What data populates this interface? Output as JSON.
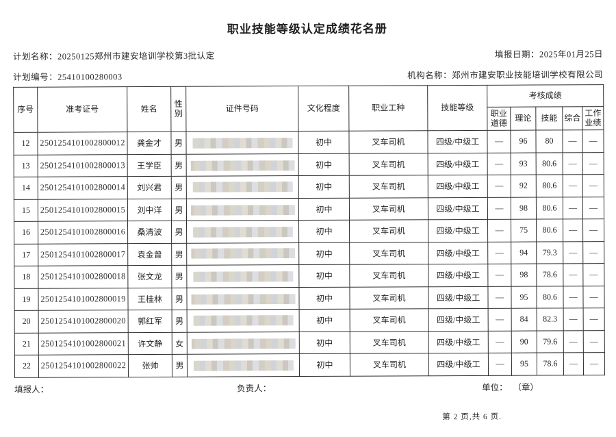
{
  "document": {
    "title": "职业技能等级认定成绩花名册",
    "meta": {
      "plan_name_label": "计划名称：",
      "plan_name_value": "20250125郑州市建安培训学校第3批认定",
      "report_date_label": "填报日期：",
      "report_date_value": "2025年01月25日",
      "plan_number_label": "计划编号：",
      "plan_number_value": "25410100280003",
      "org_name_label": "机构名称：",
      "org_name_value": "郑州市建安职业技能培训学校有限公司"
    },
    "table": {
      "headers": {
        "seq": "序号",
        "exam_no": "准考证号",
        "name": "姓名",
        "gender": "性\n别",
        "id_number": "证件号码",
        "education": "文化程度",
        "occupation": "职业工种",
        "skill_level": "技能等级",
        "assessment_group": "考核成绩",
        "ethics": "职业\n道德",
        "theory": "理论",
        "skill": "技能",
        "comprehensive": "综合",
        "work": "工作\n业绩"
      },
      "rows": [
        {
          "no": "12",
          "exam_no": "2501254101002800012",
          "name": "龚金才",
          "gender": "男",
          "education": "初中",
          "occupation": "叉车司机",
          "level": "四级/中级工",
          "ethics": "—",
          "theory": "96",
          "skill": "80",
          "comprehensive": "—",
          "work": "—"
        },
        {
          "no": "13",
          "exam_no": "2501254101002800013",
          "name": "王学臣",
          "gender": "男",
          "education": "初中",
          "occupation": "叉车司机",
          "level": "四级/中级工",
          "ethics": "—",
          "theory": "93",
          "skill": "80.6",
          "comprehensive": "—",
          "work": "—"
        },
        {
          "no": "14",
          "exam_no": "2501254101002800014",
          "name": "刘兴君",
          "gender": "男",
          "education": "初中",
          "occupation": "叉车司机",
          "level": "四级/中级工",
          "ethics": "—",
          "theory": "92",
          "skill": "80.6",
          "comprehensive": "—",
          "work": "—"
        },
        {
          "no": "15",
          "exam_no": "2501254101002800015",
          "name": "刘中洋",
          "gender": "男",
          "education": "初中",
          "occupation": "叉车司机",
          "level": "四级/中级工",
          "ethics": "—",
          "theory": "98",
          "skill": "80.6",
          "comprehensive": "—",
          "work": "—"
        },
        {
          "no": "16",
          "exam_no": "2501254101002800016",
          "name": "桑清波",
          "gender": "男",
          "education": "初中",
          "occupation": "叉车司机",
          "level": "四级/中级工",
          "ethics": "—",
          "theory": "75",
          "skill": "80.6",
          "comprehensive": "—",
          "work": "—"
        },
        {
          "no": "17",
          "exam_no": "2501254101002800017",
          "name": "袁金曾",
          "gender": "男",
          "education": "初中",
          "occupation": "叉车司机",
          "level": "四级/中级工",
          "ethics": "—",
          "theory": "94",
          "skill": "79.3",
          "comprehensive": "—",
          "work": "—"
        },
        {
          "no": "18",
          "exam_no": "2501254101002800018",
          "name": "张文龙",
          "gender": "男",
          "education": "初中",
          "occupation": "叉车司机",
          "level": "四级/中级工",
          "ethics": "—",
          "theory": "98",
          "skill": "78.6",
          "comprehensive": "—",
          "work": "—"
        },
        {
          "no": "19",
          "exam_no": "2501254101002800019",
          "name": "王桂林",
          "gender": "男",
          "education": "初中",
          "occupation": "叉车司机",
          "level": "四级/中级工",
          "ethics": "—",
          "theory": "95",
          "skill": "80.6",
          "comprehensive": "—",
          "work": "—"
        },
        {
          "no": "20",
          "exam_no": "2501254101002800020",
          "name": "郭红军",
          "gender": "男",
          "education": "初中",
          "occupation": "叉车司机",
          "level": "四级/中级工",
          "ethics": "—",
          "theory": "84",
          "skill": "82.3",
          "comprehensive": "—",
          "work": "—"
        },
        {
          "no": "21",
          "exam_no": "2501254101002800021",
          "name": "许文静",
          "gender": "女",
          "education": "初中",
          "occupation": "叉车司机",
          "level": "四级/中级工",
          "ethics": "—",
          "theory": "90",
          "skill": "79.6",
          "comprehensive": "—",
          "work": "—"
        },
        {
          "no": "22",
          "exam_no": "2501254101002800022",
          "name": "张帅",
          "gender": "男",
          "education": "初中",
          "occupation": "叉车司机",
          "level": "四级/中级工",
          "ethics": "—",
          "theory": "95",
          "skill": "78.6",
          "comprehensive": "—",
          "work": "—"
        }
      ]
    },
    "footer": {
      "filler_label": "填报人：",
      "manager_label": "负责人：",
      "unit_label": "单位：",
      "unit_seal": "（章）",
      "page_info": "第 2 页,共 6 页."
    },
    "colors": {
      "text": "#262626",
      "table_border": "#2e2e2e",
      "mosaic_tones": [
        "#d6d2c8",
        "#ccd0d5",
        "#ded9cf",
        "#c6c3bb",
        "#d9dbdf"
      ]
    }
  }
}
